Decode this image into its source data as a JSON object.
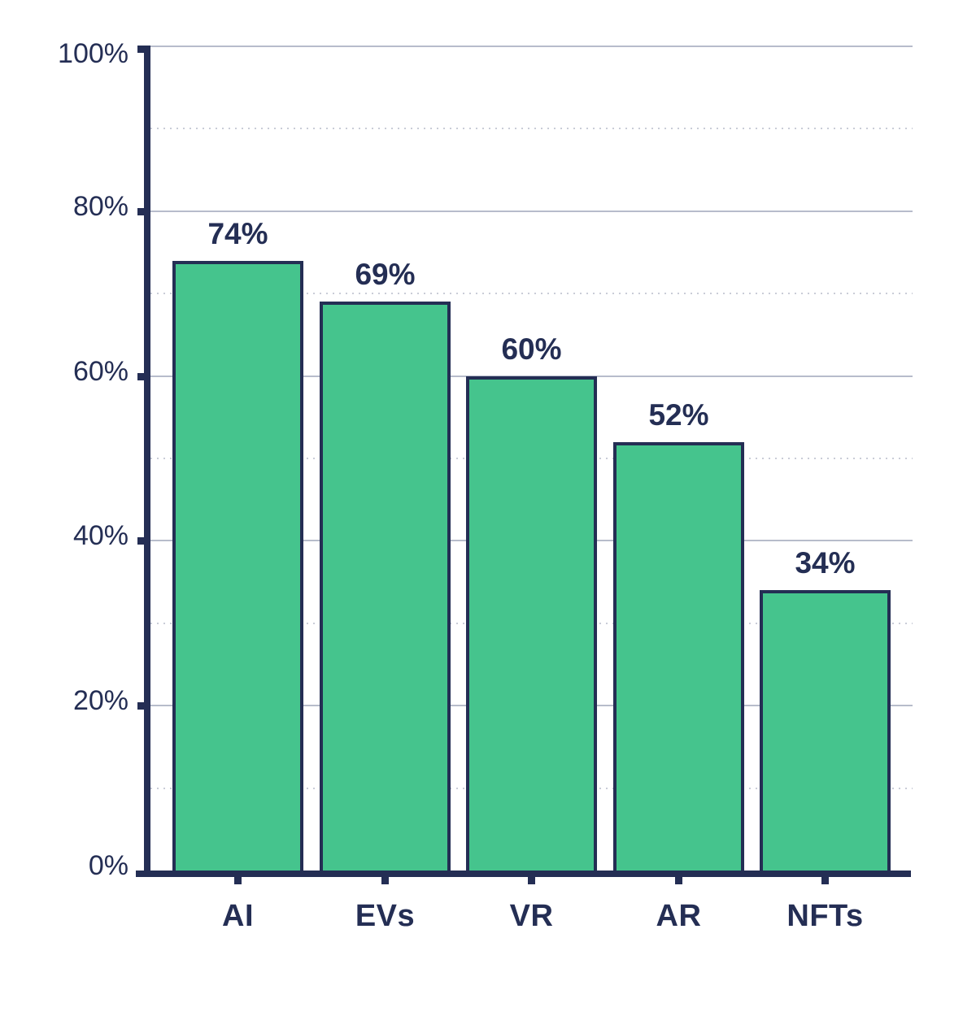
{
  "chart_data": {
    "type": "bar",
    "title": "",
    "xlabel": "",
    "ylabel": "",
    "categories": [
      "AI",
      "EVs",
      "VR",
      "AR",
      "NFTs"
    ],
    "values": [
      74,
      69,
      60,
      52,
      34
    ],
    "value_labels": [
      "74%",
      "69%",
      "60%",
      "52%",
      "34%"
    ],
    "ylim": [
      0,
      100
    ],
    "y_major_ticks": [
      100,
      80,
      60,
      40,
      20,
      0
    ],
    "y_tick_labels": [
      "100%",
      "80%",
      "60%",
      "40%",
      "20%",
      "0%"
    ],
    "y_minor_ticks": [
      90,
      70,
      50,
      30,
      10
    ],
    "grid": "major solid horizontal, minor dotted horizontal",
    "legend_position": "none",
    "colors": {
      "bar_fill": "#45C48D",
      "bar_border": "#242E54",
      "axis": "#242E54",
      "text": "#242E54",
      "grid_major": "#B7BCCB",
      "grid_minor": "#C9CCD7",
      "background": "#FFFFFF"
    }
  }
}
